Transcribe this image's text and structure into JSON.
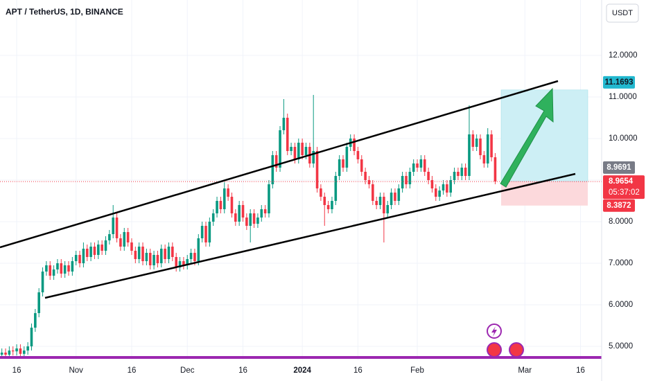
{
  "chart_data": {
    "type": "candlestick",
    "title": "APT / TetherUS, 1D, BINANCE",
    "currency": "USDT",
    "up_color": "#089981",
    "down_color": "#f23645",
    "open": [
      4.8,
      4.85,
      4.8,
      4.9,
      4.88,
      4.95,
      4.82,
      4.9,
      5.0,
      5.45,
      5.8,
      6.3,
      6.8,
      6.95,
      6.7,
      6.85,
      7.0,
      6.75,
      6.95,
      6.8,
      7.05,
      7.2,
      7.0,
      7.35,
      7.15,
      7.4,
      7.2,
      7.45,
      7.3,
      7.55,
      7.7,
      8.1,
      7.6,
      7.4,
      7.75,
      7.5,
      7.3,
      7.1,
      7.4,
      7.05,
      7.25,
      6.95,
      7.2,
      7.0,
      7.35,
      7.1,
      7.4,
      7.15,
      6.9,
      7.05,
      6.95,
      7.1,
      7.25,
      7.05,
      7.6,
      7.9,
      7.5,
      8.0,
      8.2,
      8.5,
      8.3,
      8.8,
      8.6,
      8.2,
      8.0,
      8.4,
      8.1,
      7.9,
      8.2,
      7.95,
      8.1,
      8.3,
      8.2,
      8.9,
      9.6,
      9.3,
      10.2,
      10.5,
      9.7,
      9.8,
      9.5,
      9.9,
      9.6,
      9.8,
      9.4,
      9.7,
      8.8,
      8.6,
      8.4,
      8.3,
      8.5,
      9.1,
      9.5,
      9.3,
      9.8,
      10.0,
      9.7,
      9.5,
      9.2,
      9.0,
      8.9,
      8.5,
      8.4,
      8.6,
      8.2,
      8.4,
      8.7,
      8.5,
      8.8,
      9.1,
      8.9,
      9.2,
      9.4,
      9.3,
      9.5,
      9.2,
      9.0,
      8.8,
      8.6,
      8.75,
      8.9,
      8.7,
      9.0,
      9.2,
      9.1,
      9.3,
      9.1,
      10.1,
      9.8,
      10.0,
      9.6,
      9.4,
      10.1,
      9.55
    ],
    "high": [
      4.95,
      4.95,
      5.0,
      5.0,
      5.05,
      5.05,
      5.0,
      5.1,
      5.55,
      5.9,
      6.4,
      6.9,
      7.05,
      7.05,
      6.95,
      7.1,
      7.1,
      7.05,
      7.05,
      7.15,
      7.3,
      7.3,
      7.5,
      7.45,
      7.5,
      7.5,
      7.55,
      7.55,
      7.65,
      7.8,
      8.4,
      8.2,
      7.7,
      7.85,
      7.85,
      7.6,
      7.4,
      7.5,
      7.5,
      7.35,
      7.35,
      7.3,
      7.3,
      7.45,
      7.45,
      7.5,
      7.5,
      7.25,
      7.15,
      7.15,
      7.2,
      7.35,
      7.35,
      7.7,
      8.0,
      8.0,
      8.1,
      8.3,
      8.6,
      8.6,
      8.95,
      8.9,
      8.7,
      8.3,
      8.5,
      8.5,
      8.2,
      8.3,
      8.3,
      8.2,
      8.4,
      8.4,
      9.0,
      9.7,
      9.7,
      10.3,
      10.95,
      10.6,
      9.9,
      9.9,
      10.0,
      10.0,
      9.9,
      9.9,
      11.05,
      9.8,
      8.9,
      8.7,
      8.5,
      8.6,
      9.2,
      9.6,
      9.6,
      9.9,
      10.1,
      10.1,
      9.8,
      9.6,
      9.3,
      9.1,
      9.0,
      8.6,
      8.7,
      8.7,
      8.5,
      8.8,
      8.8,
      8.9,
      9.2,
      9.2,
      9.3,
      9.5,
      9.5,
      9.6,
      9.6,
      9.3,
      9.1,
      8.9,
      8.85,
      9.0,
      9.0,
      9.1,
      9.3,
      9.3,
      9.4,
      9.4,
      10.8,
      10.2,
      10.1,
      10.1,
      9.7,
      10.25,
      10.2,
      9.65
    ],
    "low": [
      4.7,
      4.7,
      4.7,
      4.78,
      4.78,
      4.72,
      4.72,
      4.8,
      4.9,
      5.35,
      5.7,
      6.2,
      6.7,
      6.6,
      6.6,
      6.75,
      6.65,
      6.65,
      6.7,
      6.7,
      6.95,
      6.9,
      6.9,
      7.05,
      7.05,
      7.1,
      7.1,
      7.2,
      7.2,
      7.45,
      7.6,
      7.5,
      7.3,
      7.3,
      7.4,
      7.2,
      7.0,
      7.0,
      6.95,
      6.95,
      6.85,
      6.85,
      6.9,
      6.9,
      7.0,
      7.0,
      7.05,
      6.8,
      6.8,
      6.85,
      6.85,
      7.0,
      6.95,
      6.95,
      7.5,
      7.4,
      7.4,
      7.9,
      8.1,
      8.2,
      8.2,
      8.5,
      8.1,
      7.9,
      7.9,
      8.0,
      7.8,
      7.5,
      7.85,
      7.85,
      8.0,
      8.1,
      8.1,
      8.8,
      9.2,
      9.2,
      10.1,
      9.6,
      9.6,
      9.4,
      9.4,
      9.5,
      9.5,
      9.3,
      9.3,
      8.7,
      8.5,
      7.9,
      8.2,
      8.2,
      8.4,
      9.0,
      9.2,
      9.2,
      9.7,
      9.6,
      9.4,
      9.1,
      8.9,
      8.8,
      8.4,
      8.3,
      8.3,
      7.5,
      8.1,
      8.3,
      8.4,
      8.4,
      8.7,
      8.8,
      8.8,
      9.1,
      9.2,
      9.2,
      9.1,
      8.9,
      8.7,
      8.5,
      8.5,
      8.65,
      8.6,
      8.6,
      8.9,
      9.0,
      9.0,
      9.0,
      9.0,
      9.7,
      9.7,
      9.5,
      9.3,
      9.3,
      9.45,
      8.9
    ],
    "close": [
      4.85,
      4.8,
      4.9,
      4.88,
      4.95,
      4.82,
      4.9,
      5.0,
      5.45,
      5.8,
      6.3,
      6.8,
      6.95,
      6.7,
      6.85,
      7.0,
      6.75,
      6.95,
      6.8,
      7.05,
      7.2,
      7.0,
      7.35,
      7.15,
      7.4,
      7.2,
      7.45,
      7.3,
      7.55,
      7.7,
      8.1,
      7.6,
      7.4,
      7.75,
      7.5,
      7.3,
      7.1,
      7.4,
      7.05,
      7.25,
      6.95,
      7.2,
      7.0,
      7.35,
      7.1,
      7.4,
      7.15,
      6.9,
      7.05,
      6.95,
      7.1,
      7.25,
      7.05,
      7.6,
      7.9,
      7.5,
      8.0,
      8.2,
      8.5,
      8.3,
      8.8,
      8.6,
      8.2,
      8.0,
      8.4,
      8.1,
      7.9,
      8.2,
      7.95,
      8.1,
      8.3,
      8.2,
      8.9,
      9.6,
      9.3,
      10.2,
      10.5,
      9.7,
      9.8,
      9.5,
      9.9,
      9.6,
      9.8,
      9.4,
      9.7,
      8.8,
      8.6,
      8.4,
      8.3,
      8.5,
      9.1,
      9.5,
      9.3,
      9.8,
      10.0,
      9.7,
      9.5,
      9.2,
      9.0,
      8.9,
      8.5,
      8.4,
      8.6,
      8.2,
      8.4,
      8.7,
      8.5,
      8.8,
      9.1,
      8.9,
      9.2,
      9.4,
      9.3,
      9.5,
      9.2,
      9.0,
      8.8,
      8.6,
      8.75,
      8.9,
      8.7,
      9.0,
      9.2,
      9.1,
      9.3,
      9.1,
      10.1,
      9.8,
      10.0,
      9.6,
      9.4,
      10.1,
      9.55,
      8.9654
    ],
    "xlim": [
      -0.5,
      161.7
    ],
    "xticks": [
      {
        "value": 4,
        "label": "16"
      },
      {
        "value": 20,
        "label": "Nov"
      },
      {
        "value": 35,
        "label": "16"
      },
      {
        "value": 50,
        "label": "Dec"
      },
      {
        "value": 65,
        "label": "16"
      },
      {
        "value": 81,
        "label": "2024"
      },
      {
        "value": 96,
        "label": "16"
      },
      {
        "value": 112,
        "label": "Feb"
      },
      {
        "value": 141,
        "label": "Mar"
      },
      {
        "value": 156,
        "label": "16"
      }
    ],
    "ylim": [
      4.6667,
      13.3333
    ],
    "yticks": [
      {
        "value": 5,
        "label": "5.0000"
      },
      {
        "value": 6,
        "label": "6.0000"
      },
      {
        "value": 7,
        "label": "7.0000"
      },
      {
        "value": 8,
        "label": "8.0000"
      },
      {
        "value": 9,
        "label": "9.0000"
      },
      {
        "value": 10,
        "label": "10.0000"
      },
      {
        "value": 11,
        "label": "11.0000"
      },
      {
        "value": 12,
        "label": "12.0000"
      }
    ],
    "last_price": 8.9654,
    "countdown": "05:37:02",
    "position": {
      "target": 11.1693,
      "entry": 8.9691,
      "stop": 8.3872
    }
  }
}
